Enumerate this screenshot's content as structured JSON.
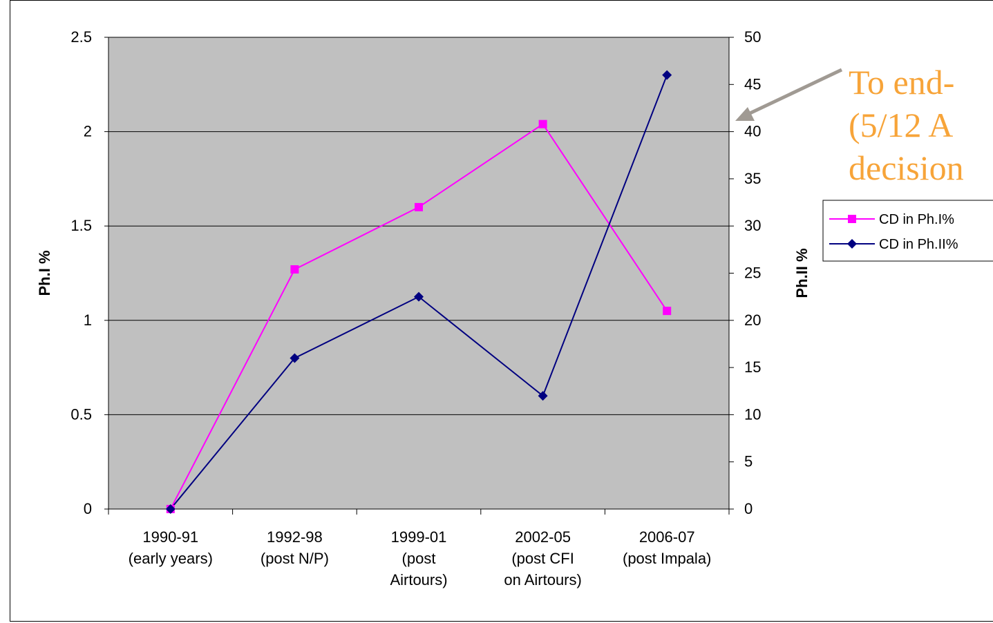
{
  "chart_data": {
    "type": "line",
    "categories": [
      [
        "1990-91",
        "(early years)"
      ],
      [
        "1992-98",
        "(post N/P)"
      ],
      [
        "1999-01",
        "(post",
        "Airtours)"
      ],
      [
        "2002-05",
        "(post CFI",
        "on Airtours)"
      ],
      [
        "2006-07",
        "(post Impala)"
      ]
    ],
    "series": [
      {
        "name": "CD in Ph.I%",
        "axis": "left",
        "color": "#ff00ff",
        "marker": "square",
        "values": [
          0,
          1.27,
          1.6,
          2.04,
          1.05
        ]
      },
      {
        "name": "CD in Ph.II%",
        "axis": "right",
        "color": "#000080",
        "marker": "diamond",
        "values": [
          0,
          16,
          22.5,
          12,
          46
        ]
      }
    ],
    "ylabel": "Ph.I %",
    "y2label": "Ph.II %",
    "ylim": [
      0,
      2.5
    ],
    "yticks": [
      "0",
      "0.5",
      "1",
      "1.5",
      "2",
      "2.5"
    ],
    "y2lim": [
      0,
      50
    ],
    "y2ticks": [
      "0",
      "5",
      "10",
      "15",
      "20",
      "25",
      "30",
      "35",
      "40",
      "45",
      "50"
    ],
    "grid": true,
    "plot_background": "#c0c0c0",
    "legend_position": "right"
  },
  "annotation": {
    "lines": [
      "To end-",
      "(5/12 A",
      "decision"
    ],
    "color": "#f7a439",
    "arrow_color": "#a09a93"
  }
}
